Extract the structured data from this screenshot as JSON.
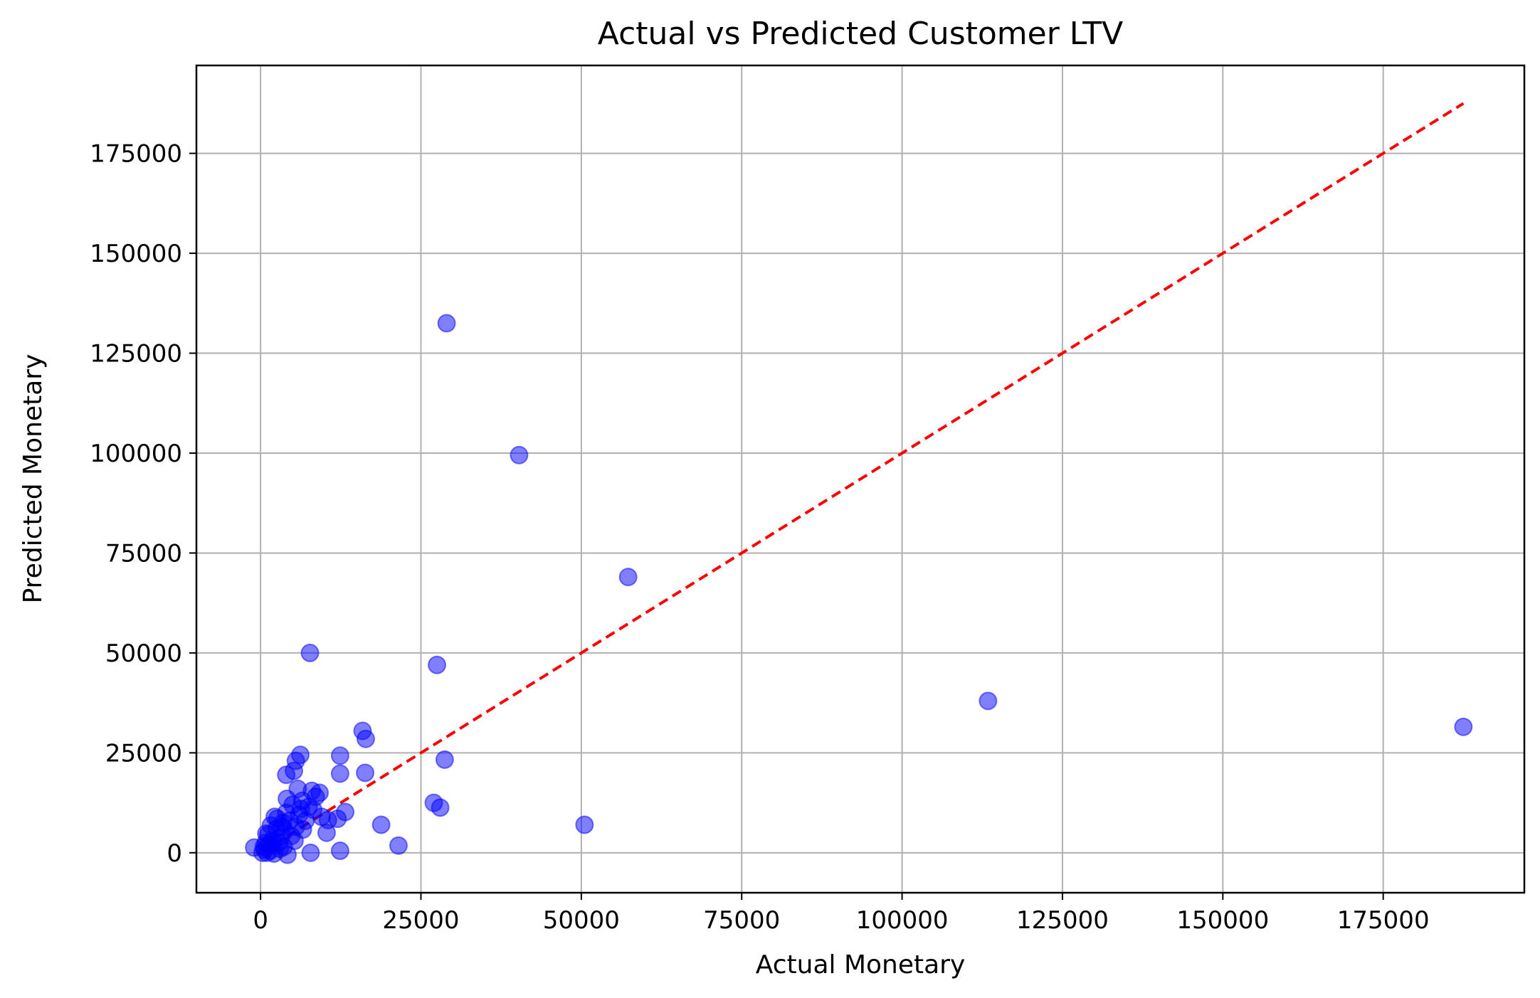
{
  "chart_data": {
    "type": "scatter",
    "title": "Actual vs Predicted Customer LTV",
    "xlabel": "Actual Monetary",
    "ylabel": "Predicted Monetary",
    "xlim": [
      -10000,
      197000
    ],
    "ylim": [
      -10000,
      197000
    ],
    "xticks": [
      0,
      25000,
      50000,
      75000,
      100000,
      125000,
      150000,
      175000
    ],
    "yticks": [
      0,
      25000,
      50000,
      75000,
      100000,
      125000,
      150000,
      175000
    ],
    "grid": true,
    "marker_color": "#0000ff",
    "marker_alpha": 0.5,
    "reference_line": {
      "style": "dashed",
      "color": "#ff0000",
      "from": [
        0,
        0
      ],
      "to": [
        187500,
        187500
      ]
    },
    "series": [
      {
        "points": [
          [
            29000,
            132500
          ],
          [
            40300,
            99500
          ],
          [
            57300,
            69000
          ],
          [
            7700,
            50000
          ],
          [
            27500,
            47000
          ],
          [
            113400,
            38000
          ],
          [
            187500,
            31500
          ],
          [
            15900,
            30500
          ],
          [
            16400,
            28500
          ],
          [
            28700,
            23300
          ],
          [
            6200,
            24500
          ],
          [
            12400,
            24300
          ],
          [
            5500,
            23000
          ],
          [
            16300,
            20000
          ],
          [
            4000,
            19500
          ],
          [
            5200,
            20500
          ],
          [
            12400,
            19800
          ],
          [
            27000,
            12500
          ],
          [
            28000,
            11300
          ],
          [
            50500,
            7000
          ],
          [
            18800,
            7000
          ],
          [
            13200,
            10200
          ],
          [
            12000,
            8500
          ],
          [
            10300,
            5000
          ],
          [
            21500,
            1800
          ],
          [
            12400,
            500
          ],
          [
            7800,
            0
          ],
          [
            4200,
            -500
          ],
          [
            3000,
            1000
          ],
          [
            2000,
            2000
          ],
          [
            1500,
            500
          ],
          [
            1000,
            0
          ],
          [
            500,
            1500
          ],
          [
            -1000,
            1300
          ],
          [
            1200,
            4500
          ],
          [
            2500,
            6000
          ],
          [
            3500,
            7500
          ],
          [
            2200,
            9000
          ],
          [
            4000,
            10000
          ],
          [
            5000,
            12000
          ],
          [
            6500,
            13000
          ],
          [
            8000,
            15500
          ],
          [
            9200,
            15000
          ],
          [
            8600,
            14000
          ],
          [
            7500,
            11500
          ],
          [
            6000,
            9500
          ],
          [
            4500,
            8000
          ],
          [
            3200,
            4000
          ],
          [
            1800,
            3000
          ],
          [
            800,
            2500
          ],
          [
            300,
            0
          ],
          [
            600,
            800
          ],
          [
            2800,
            2500
          ],
          [
            3800,
            5500
          ],
          [
            5500,
            6500
          ],
          [
            7000,
            8000
          ],
          [
            9500,
            9000
          ],
          [
            10500,
            8200
          ],
          [
            5800,
            16000
          ],
          [
            4100,
            13500
          ],
          [
            6300,
            11000
          ],
          [
            2600,
            8500
          ],
          [
            1600,
            6800
          ],
          [
            3300,
            6500
          ],
          [
            4800,
            4200
          ],
          [
            6600,
            5800
          ],
          [
            8200,
            10800
          ],
          [
            5300,
            3000
          ],
          [
            2100,
            -200
          ],
          [
            3600,
            1500
          ],
          [
            1400,
            2200
          ],
          [
            900,
            4800
          ]
        ]
      }
    ]
  }
}
